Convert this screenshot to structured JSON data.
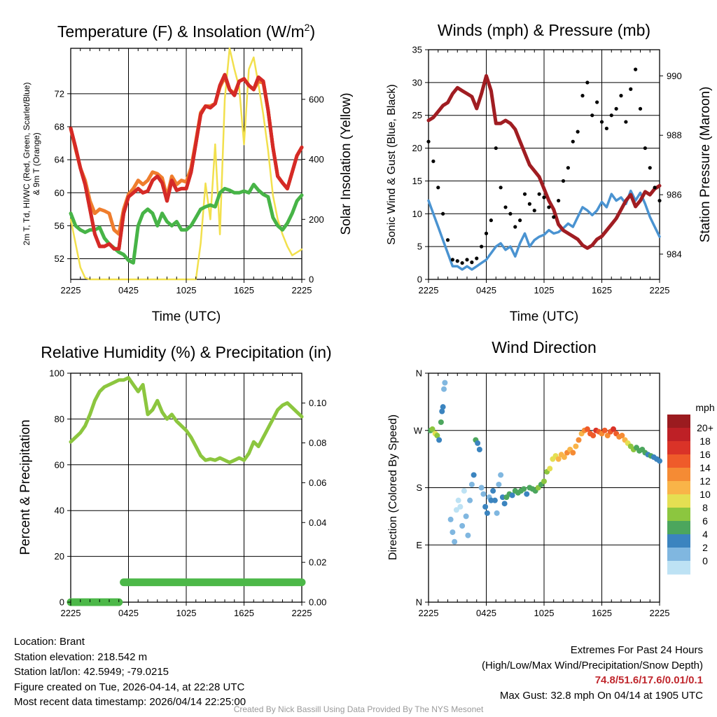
{
  "colors": {
    "temp": "#d52a26",
    "t9m": "#ef7d2d",
    "dew": "#47b447",
    "solar": "#f2e04d",
    "wind": "#4a93d1",
    "gust": "#000000",
    "pressure": "#a01d22",
    "rh": "#8cc63f",
    "precip": "#4cb848",
    "grid": "#000000"
  },
  "time_ticks": [
    "2225",
    "0425",
    "1025",
    "1625",
    "2225"
  ],
  "chart_data": [
    {
      "type": "line",
      "title": "Temperature (F) & Insolation (W/m²)",
      "title_main": "Temperature (F) & Insolation (W/m",
      "title_sup": "2",
      "title_end": ")",
      "xlabel": "Time (UTC)",
      "ylabel_line1": "2m T, Td, HI/WC (Red, Green, Scarlet/Blue)",
      "ylabel_line2": "& 9m T (Orange)",
      "y2label": "Solar Insolation (Yellow)",
      "xlim": [
        0,
        24
      ],
      "ylim": [
        49.5,
        77.5
      ],
      "y_ticks": [
        52,
        56,
        60,
        64,
        68,
        72
      ],
      "y2lim": [
        0,
        770
      ],
      "y2_ticks": [
        0,
        200,
        400,
        600
      ],
      "x": [
        0,
        0.5,
        1,
        1.5,
        2,
        2.5,
        3,
        3.5,
        4,
        4.5,
        5,
        5.5,
        6,
        6.5,
        7,
        7.5,
        8,
        8.5,
        9,
        9.5,
        10,
        10.5,
        11,
        11.5,
        12,
        12.5,
        13,
        13.5,
        14,
        14.5,
        15,
        15.5,
        16,
        16.5,
        17,
        17.5,
        18,
        18.5,
        19,
        19.5,
        20,
        20.5,
        21,
        21.5,
        22,
        22.5,
        23,
        23.5,
        24
      ],
      "series": [
        {
          "name": "2m T",
          "values": [
            67.8,
            65.5,
            63,
            61,
            58,
            55,
            53.5,
            53.5,
            53.8,
            53.2,
            53.2,
            57.5,
            59.5,
            60,
            60.5,
            60,
            60.2,
            61.5,
            62,
            61.2,
            59,
            61.5,
            60.3,
            60.5,
            60.5,
            62.5,
            66,
            69.5,
            70.5,
            70.3,
            70.8,
            73,
            74.3,
            72.5,
            71.8,
            73.5,
            73.8,
            73,
            72.5,
            74,
            73.5,
            70,
            65.5,
            62,
            61.2,
            60.5,
            62.5,
            64.5,
            65.5
          ]
        },
        {
          "name": "9m T",
          "values": [
            67.8,
            65.3,
            63,
            61.5,
            59,
            57.5,
            58,
            57.8,
            57.5,
            55.5,
            55,
            58,
            59.8,
            60.5,
            61.5,
            61,
            61.5,
            62.5,
            62.3,
            61.8,
            59.5,
            62,
            61,
            61.5,
            61.3,
            63,
            66.3,
            69.7,
            70.5,
            70.5,
            70.8,
            72.8,
            74,
            72.5,
            72,
            73.5,
            73.8,
            73,
            72.5,
            73.5,
            73.3,
            70,
            65.5,
            62,
            61.2,
            60.5,
            62.5,
            64.5,
            65.5
          ]
        },
        {
          "name": "Td",
          "values": [
            57.5,
            56,
            55.5,
            55.2,
            55.5,
            55.5,
            55.8,
            54.5,
            53.8,
            53.3,
            52.8,
            52.5,
            51.8,
            51.5,
            56,
            57.5,
            58,
            57.5,
            56,
            57.5,
            56.5,
            56,
            56.5,
            55.5,
            55.5,
            56,
            57,
            58,
            58.3,
            58.5,
            58.3,
            60,
            60.5,
            60.3,
            60,
            60,
            60.2,
            60,
            61,
            60.3,
            59.8,
            59.5,
            57,
            56,
            55.5,
            56.3,
            57.5,
            59,
            59.7
          ]
        },
        {
          "name": "Solar",
          "axis": "y2",
          "values": [
            200,
            120,
            40,
            5,
            0,
            0,
            0,
            0,
            0,
            0,
            0,
            0,
            0,
            0,
            0,
            0,
            0,
            0,
            0,
            0,
            0,
            0,
            0,
            0,
            0,
            0,
            0,
            120,
            320,
            200,
            450,
            150,
            600,
            770,
            700,
            640,
            450,
            700,
            740,
            650,
            550,
            430,
            280,
            200,
            150,
            110,
            80,
            90,
            100
          ]
        }
      ]
    },
    {
      "type": "line",
      "title": "Winds (mph) & Pressure (mb)",
      "xlabel": "Time (UTC)",
      "ylabel": "Sonic Wind & Gust (Blue, Black)",
      "y2label": "Station Pressure (Maroon)",
      "xlim": [
        0,
        24
      ],
      "ylim": [
        0,
        35
      ],
      "y_ticks": [
        0,
        5,
        10,
        15,
        20,
        25,
        30,
        35
      ],
      "y2lim": [
        983.15,
        990.88
      ],
      "y2_ticks": [
        984,
        986,
        988,
        990
      ],
      "x": [
        0,
        0.5,
        1,
        1.5,
        2,
        2.5,
        3,
        3.5,
        4,
        4.5,
        5,
        5.5,
        6,
        6.5,
        7,
        7.5,
        8,
        8.5,
        9,
        9.5,
        10,
        10.5,
        11,
        11.5,
        12,
        12.5,
        13,
        13.5,
        14,
        14.5,
        15,
        15.5,
        16,
        16.5,
        17,
        17.5,
        18,
        18.5,
        19,
        19.5,
        20,
        20.5,
        21,
        21.5,
        22,
        22.5,
        23,
        23.5,
        24
      ],
      "series": [
        {
          "name": "Sonic Wind",
          "values": [
            12,
            10,
            8,
            6,
            4,
            2,
            2,
            1.5,
            2,
            1.5,
            2,
            2.5,
            3,
            4,
            5,
            5.5,
            4.5,
            5,
            3.5,
            5.5,
            7,
            5,
            6,
            6.5,
            6.8,
            7.5,
            7,
            7.2,
            7.8,
            8.5,
            8,
            9.5,
            11,
            10.5,
            9.8,
            10.5,
            11.8,
            11,
            13,
            12,
            12.5,
            11.5,
            13.5,
            12,
            13.2,
            11.5,
            9.5,
            8,
            6.5
          ]
        },
        {
          "name": "Gust",
          "values": [
            21,
            18,
            14,
            10,
            6,
            3,
            2.8,
            2.5,
            3,
            2.6,
            3.2,
            5,
            7,
            9,
            20,
            14,
            11,
            10,
            8,
            9,
            13,
            11.5,
            10.5,
            13,
            12.5,
            11,
            9.5,
            12,
            15,
            17,
            21,
            22.5,
            28,
            30,
            25,
            27,
            24,
            23,
            25,
            26,
            28,
            24,
            29,
            32,
            26,
            20,
            17,
            14,
            12
          ]
        },
        {
          "name": "Pressure",
          "axis": "y2",
          "values": [
            988.5,
            988.6,
            988.8,
            989,
            989.1,
            989.4,
            989.6,
            989.5,
            989.4,
            989.3,
            988.9,
            989.4,
            990,
            989.5,
            988.4,
            988.4,
            988.5,
            988.4,
            988.2,
            987.8,
            987.4,
            987,
            986.8,
            986.6,
            986.2,
            985.8,
            985.5,
            985,
            984.8,
            984.7,
            984.6,
            984.5,
            984.3,
            984.2,
            984.3,
            984.5,
            984.6,
            984.8,
            985,
            985.2,
            985.5,
            985.8,
            986,
            985.6,
            985.8,
            986.1,
            986,
            986.2,
            986.3
          ]
        }
      ]
    },
    {
      "type": "line",
      "title": "Relative Humidity (%) & Precipitation (in)",
      "ylabel": "Percent & Precipitation",
      "xlim": [
        0,
        24
      ],
      "ylim": [
        0,
        100
      ],
      "y_ticks": [
        0,
        20,
        40,
        60,
        80,
        100
      ],
      "y2lim": [
        0,
        0.115
      ],
      "y2_ticks": [
        "0.00",
        "0.02",
        "0.04",
        "0.06",
        "0.08",
        "0.10"
      ],
      "x": [
        0,
        0.5,
        1,
        1.5,
        2,
        2.5,
        3,
        3.5,
        4,
        4.5,
        5,
        5.5,
        6,
        6.5,
        7,
        7.5,
        8,
        8.5,
        9,
        9.5,
        10,
        10.5,
        11,
        11.5,
        12,
        12.5,
        13,
        13.5,
        14,
        14.5,
        15,
        15.5,
        16,
        16.5,
        17,
        17.5,
        18,
        18.5,
        19,
        19.5,
        20,
        20.5,
        21,
        21.5,
        22,
        22.5,
        23,
        23.5,
        24
      ],
      "series": [
        {
          "name": "RH",
          "values": [
            70,
            72,
            74,
            77,
            82,
            88,
            92,
            94,
            95,
            96,
            97,
            97,
            98,
            95,
            92,
            95,
            82,
            84,
            88,
            83,
            80,
            82,
            79,
            77,
            75,
            72,
            68,
            64,
            62,
            62.5,
            62,
            63,
            62,
            61,
            62,
            63,
            62,
            65,
            70,
            68,
            72,
            76,
            80,
            84,
            86,
            87,
            85,
            83,
            81
          ]
        },
        {
          "name": "Precip",
          "axis": "y2",
          "values": [
            0,
            0,
            0,
            0,
            0,
            0,
            0,
            0,
            0,
            0,
            0,
            0.01,
            0.01,
            0.01,
            0.01,
            0.01,
            0.01,
            0.01,
            0.01,
            0.01,
            0.01,
            0.01,
            0.01,
            0.01,
            0.01,
            0.01,
            0.01,
            0.01,
            0.01,
            0.01,
            0.01,
            0.01,
            0.01,
            0.01,
            0.01,
            0.01,
            0.01,
            0.01,
            0.01,
            0.01,
            0.01,
            0.01,
            0.01,
            0.01,
            0.01,
            0.01,
            0.01,
            0.01,
            0.01
          ]
        }
      ]
    },
    {
      "type": "scatter",
      "title": "Wind Direction",
      "ylabel": "Direction (Colored By Speed)",
      "xlim": [
        0,
        24
      ],
      "ylim": [
        0,
        360
      ],
      "y_tick_labels": [
        "N",
        "E",
        "S",
        "W",
        "N"
      ],
      "colorbar_label": "mph",
      "colorbar_ticks": [
        "20+",
        "18",
        "16",
        "14",
        "12",
        "10",
        "8",
        "6",
        "4",
        "2",
        "0"
      ],
      "colorbar_colors": [
        "#9b1b1f",
        "#be2026",
        "#da3328",
        "#ef5b2a",
        "#f58b34",
        "#f9b448",
        "#e5df52",
        "#8cc63f",
        "#4ca65d",
        "#3b84bf",
        "#80b7e0",
        "#bde2f4"
      ],
      "points": [
        [
          0.2,
          270,
          6
        ],
        [
          0.4,
          272,
          9
        ],
        [
          0.7,
          265,
          11
        ],
        [
          0.9,
          262,
          8
        ],
        [
          1.1,
          255,
          5
        ],
        [
          1.3,
          283,
          7
        ],
        [
          1.4,
          300,
          4
        ],
        [
          1.5,
          307,
          5
        ],
        [
          1.6,
          335,
          2
        ],
        [
          1.7,
          345,
          2
        ],
        [
          2.3,
          130,
          2
        ],
        [
          2.5,
          110,
          2
        ],
        [
          2.7,
          95,
          2
        ],
        [
          2.9,
          145,
          1
        ],
        [
          3.1,
          160,
          1
        ],
        [
          3.3,
          150,
          1
        ],
        [
          3.5,
          120,
          2
        ],
        [
          3.7,
          175,
          1
        ],
        [
          3.9,
          135,
          2
        ],
        [
          4.1,
          105,
          2
        ],
        [
          4.3,
          160,
          2
        ],
        [
          4.5,
          185,
          3
        ],
        [
          4.7,
          200,
          5
        ],
        [
          4.9,
          255,
          6
        ],
        [
          5.1,
          250,
          4
        ],
        [
          5.3,
          240,
          5
        ],
        [
          5.5,
          180,
          2
        ],
        [
          5.7,
          170,
          3
        ],
        [
          5.9,
          150,
          4
        ],
        [
          6.1,
          140,
          4
        ],
        [
          6.3,
          165,
          3
        ],
        [
          6.5,
          160,
          5
        ],
        [
          6.7,
          175,
          4
        ],
        [
          6.9,
          160,
          5
        ],
        [
          7.1,
          140,
          3
        ],
        [
          7.3,
          185,
          2
        ],
        [
          7.5,
          200,
          3
        ],
        [
          7.7,
          165,
          5
        ],
        [
          7.9,
          155,
          4
        ],
        [
          8.1,
          165,
          6
        ],
        [
          8.4,
          170,
          6
        ],
        [
          8.7,
          168,
          5
        ],
        [
          9,
          175,
          6
        ],
        [
          9.3,
          172,
          7
        ],
        [
          9.6,
          175,
          7
        ],
        [
          9.9,
          178,
          6
        ],
        [
          10.2,
          170,
          5
        ],
        [
          10.5,
          180,
          7
        ],
        [
          10.8,
          178,
          7
        ],
        [
          11.1,
          175,
          6
        ],
        [
          11.4,
          180,
          8
        ],
        [
          11.7,
          185,
          7
        ],
        [
          12,
          190,
          8
        ],
        [
          12.3,
          205,
          8
        ],
        [
          12.6,
          210,
          10
        ],
        [
          12.9,
          225,
          11
        ],
        [
          13.2,
          230,
          10
        ],
        [
          13.5,
          225,
          12
        ],
        [
          13.8,
          232,
          13
        ],
        [
          14.1,
          228,
          12
        ],
        [
          14.4,
          235,
          14
        ],
        [
          14.7,
          240,
          12
        ],
        [
          15,
          235,
          14
        ],
        [
          15.3,
          245,
          13
        ],
        [
          15.6,
          255,
          14
        ],
        [
          15.9,
          265,
          13
        ],
        [
          16.2,
          270,
          15
        ],
        [
          16.5,
          272,
          16
        ],
        [
          16.8,
          265,
          17
        ],
        [
          17.1,
          262,
          16
        ],
        [
          17.4,
          270,
          18
        ],
        [
          17.7,
          268,
          17
        ],
        [
          18,
          265,
          14
        ],
        [
          18.3,
          270,
          16
        ],
        [
          18.6,
          262,
          15
        ],
        [
          18.9,
          268,
          17
        ],
        [
          19.2,
          272,
          18
        ],
        [
          19.5,
          265,
          16
        ],
        [
          19.8,
          260,
          15
        ],
        [
          20.1,
          262,
          14
        ],
        [
          20.4,
          255,
          12
        ],
        [
          20.7,
          250,
          10
        ],
        [
          21,
          245,
          8
        ],
        [
          21.3,
          240,
          8
        ],
        [
          21.6,
          243,
          7
        ],
        [
          21.9,
          238,
          7
        ],
        [
          22.2,
          240,
          6
        ],
        [
          22.5,
          235,
          6
        ],
        [
          22.8,
          232,
          5
        ],
        [
          23.1,
          230,
          6
        ],
        [
          23.4,
          228,
          5
        ],
        [
          23.7,
          225,
          5
        ],
        [
          24,
          222,
          4
        ]
      ]
    }
  ],
  "info": {
    "location": "Location: Brant",
    "elevation": "Station elevation: 218.542 m",
    "latlon": "Station lat/lon: 42.5949; -79.0215",
    "created": "Figure created on Tue, 2026-04-14, at 22:28 UTC",
    "recent": "Most recent data timestamp: 2026/04/14 22:25:00"
  },
  "extremes": {
    "title": "Extremes For Past 24 Hours",
    "legend": "(High/Low/Max Wind/Precipitation/Snow Depth)",
    "values": "74.8/51.6/17.6/0.01/0.1",
    "max_gust": "Max Gust: 32.8 mph On 04/14 at 1905 UTC"
  },
  "credit": "Created By Nick Bassill Using Data Provided By The NYS Mesonet"
}
